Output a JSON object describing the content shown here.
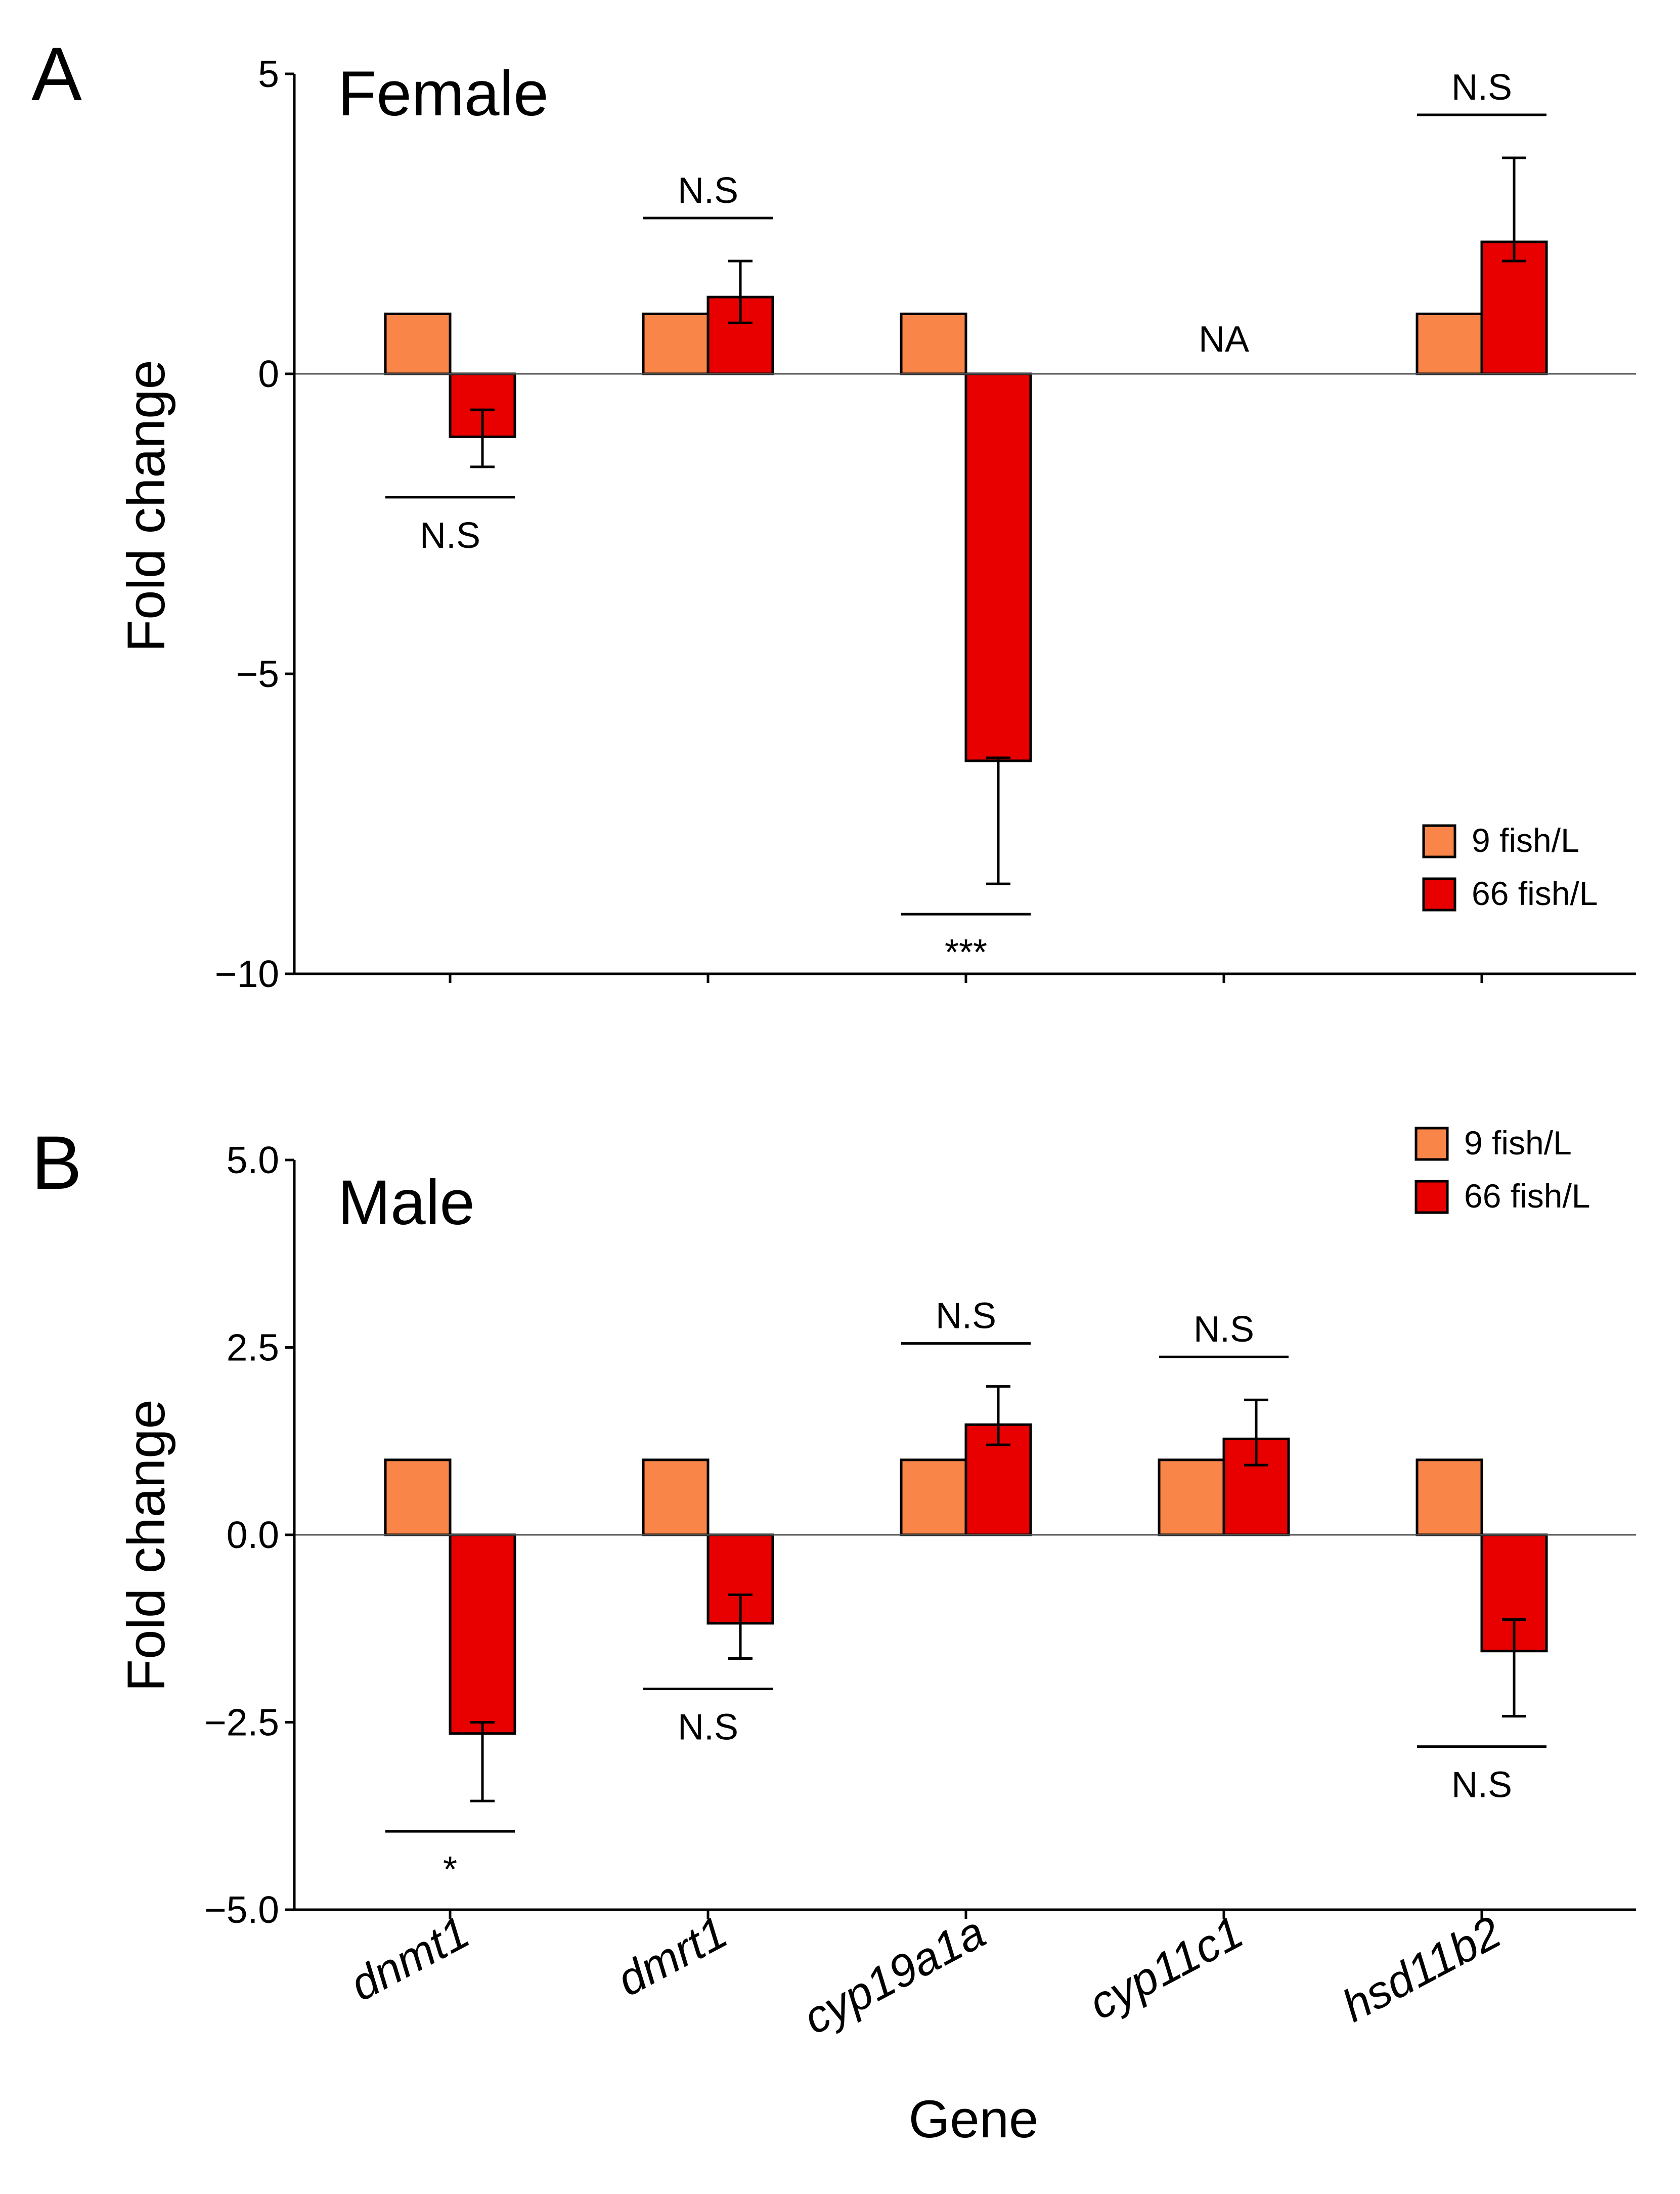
{
  "colors": {
    "low_density": "#FA8548",
    "high_density": "#E80000"
  },
  "legend": [
    "9 fish/L",
    "66 fish/L"
  ],
  "x_axis": {
    "label": "Gene",
    "tick_labels": [
      "dnmt1",
      "dmrt1",
      "cyp19a1a",
      "cyp11c1",
      "hsd11b2"
    ]
  },
  "chart_data": [
    {
      "type": "bar",
      "panel": "A",
      "title": "Female",
      "xlabel": "Gene",
      "ylabel": "Fold change",
      "ylim": [
        -10,
        5
      ],
      "yticks": [
        "5",
        "0",
        "−5",
        "−10"
      ],
      "yticks_values": [
        5,
        0,
        -5,
        -10
      ],
      "legend_position": "bottom-right",
      "categories": [
        "dnmt1",
        "dmrt1",
        "cyp19a1a",
        "cyp11c1",
        "hsd11b2"
      ],
      "series": [
        {
          "name": "9 fish/L",
          "values": [
            1,
            1,
            1,
            null,
            1
          ]
        },
        {
          "name": "66 fish/L",
          "values": [
            -1.05,
            1.28,
            -6.45,
            null,
            2.2
          ],
          "errors": [
            [
              -1.55,
              -0.6
            ],
            [
              0.85,
              1.88
            ],
            [
              -8.5,
              -6.4
            ],
            null,
            [
              1.88,
              3.6
            ]
          ]
        }
      ],
      "annotations": [
        {
          "category": "dnmt1",
          "text": "N.S",
          "side": "below"
        },
        {
          "category": "dmrt1",
          "text": "N.S",
          "side": "above"
        },
        {
          "category": "cyp19a1a",
          "text": "***",
          "side": "below"
        },
        {
          "category": "cyp11c1",
          "text": "NA",
          "side": "center"
        },
        {
          "category": "hsd11b2",
          "text": "N.S",
          "side": "above"
        }
      ]
    },
    {
      "type": "bar",
      "panel": "B",
      "title": "Male",
      "xlabel": "Gene",
      "ylabel": "Fold change",
      "ylim": [
        -5,
        5
      ],
      "yticks": [
        "5.0",
        "2.5",
        "0.0",
        "−2.5",
        "−5.0"
      ],
      "yticks_values": [
        5,
        2.5,
        0,
        -2.5,
        -5
      ],
      "legend_position": "top-right",
      "categories": [
        "dnmt1",
        "dmrt1",
        "cyp19a1a",
        "cyp11c1",
        "hsd11b2"
      ],
      "series": [
        {
          "name": "9 fish/L",
          "values": [
            1,
            1,
            1,
            1,
            1
          ]
        },
        {
          "name": "66 fish/L",
          "values": [
            -2.65,
            -1.18,
            1.47,
            1.28,
            -1.55
          ],
          "errors": [
            [
              -3.55,
              -2.5
            ],
            [
              -1.65,
              -0.8
            ],
            [
              1.2,
              1.98
            ],
            [
              0.93,
              1.8
            ],
            [
              -2.42,
              -1.13
            ]
          ]
        }
      ],
      "annotations": [
        {
          "category": "dnmt1",
          "text": "*",
          "side": "below"
        },
        {
          "category": "dmrt1",
          "text": "N.S",
          "side": "below"
        },
        {
          "category": "cyp19a1a",
          "text": "N.S",
          "side": "above"
        },
        {
          "category": "cyp11c1",
          "text": "N.S",
          "side": "above"
        },
        {
          "category": "hsd11b2",
          "text": "N.S",
          "side": "below"
        }
      ]
    }
  ]
}
